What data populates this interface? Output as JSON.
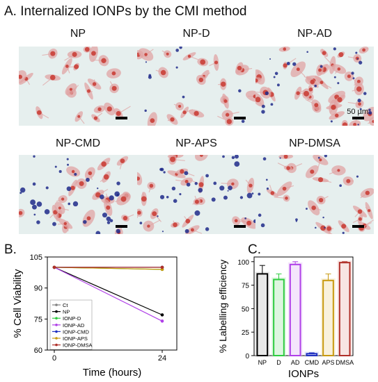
{
  "figure": {
    "section_a_title": "A. Internalized IONPs by the CMI method",
    "scale_label": "50 µm",
    "micrographs": [
      {
        "title": "NP",
        "stain": "none"
      },
      {
        "title": "NP-D",
        "stain": "light"
      },
      {
        "title": "NP-AD",
        "stain": "dense"
      },
      {
        "title": "NP-CMD",
        "stain": "heavy"
      },
      {
        "title": "NP-APS",
        "stain": "heavy"
      },
      {
        "title": "NP-DMSA",
        "stain": "moderate"
      }
    ],
    "panel_b_letter": "B.",
    "panel_c_letter": "C."
  },
  "colors": {
    "Ct": "#808080",
    "NP": "#000000",
    "IONP-D": "#2ecc40",
    "IONP-AD": "#b040e8",
    "IONP-CMD": "#2030c0",
    "IONP-APS": "#c89a10",
    "IONP-DMSA": "#b0302a",
    "micrograph_bg": "#e6efee",
    "cell_body": "#e0a4a4",
    "nucleus": "#c83830",
    "particles": "#1e2a8a"
  },
  "chart_data": [
    {
      "type": "line",
      "ylabel": "% Cell Viability",
      "xlabel": "Time (hours)",
      "x": [
        0,
        24
      ],
      "xticks": [
        "0",
        "24"
      ],
      "yticks": [
        "60",
        "75",
        "90",
        "105"
      ],
      "ylim": [
        60,
        105
      ],
      "grid": false,
      "legend_position": "bottom-left",
      "series": [
        {
          "name": "Ct",
          "values": [
            100,
            100
          ]
        },
        {
          "name": "NP",
          "values": [
            100,
            77
          ]
        },
        {
          "name": "IONP-D",
          "values": [
            100,
            99
          ]
        },
        {
          "name": "IONP-AD",
          "values": [
            100,
            74
          ]
        },
        {
          "name": "IONP-CMD",
          "values": [
            100,
            100
          ]
        },
        {
          "name": "IONP-APS",
          "values": [
            100,
            99
          ]
        },
        {
          "name": "IONP-DMSA",
          "values": [
            100,
            100
          ]
        }
      ]
    },
    {
      "type": "bar",
      "xlabel": "IONPs",
      "ylabel": "% Labelling efficiency",
      "categories": [
        "NP",
        "D",
        "AD",
        "CMD",
        "APS",
        "DMSA"
      ],
      "values": [
        87,
        81,
        97,
        2,
        80,
        99
      ],
      "errors": [
        9,
        6,
        3,
        1,
        7,
        1
      ],
      "yticks": [
        "0",
        "25",
        "50",
        "75",
        "100"
      ],
      "ylim": [
        0,
        105
      ],
      "grid": false
    }
  ]
}
